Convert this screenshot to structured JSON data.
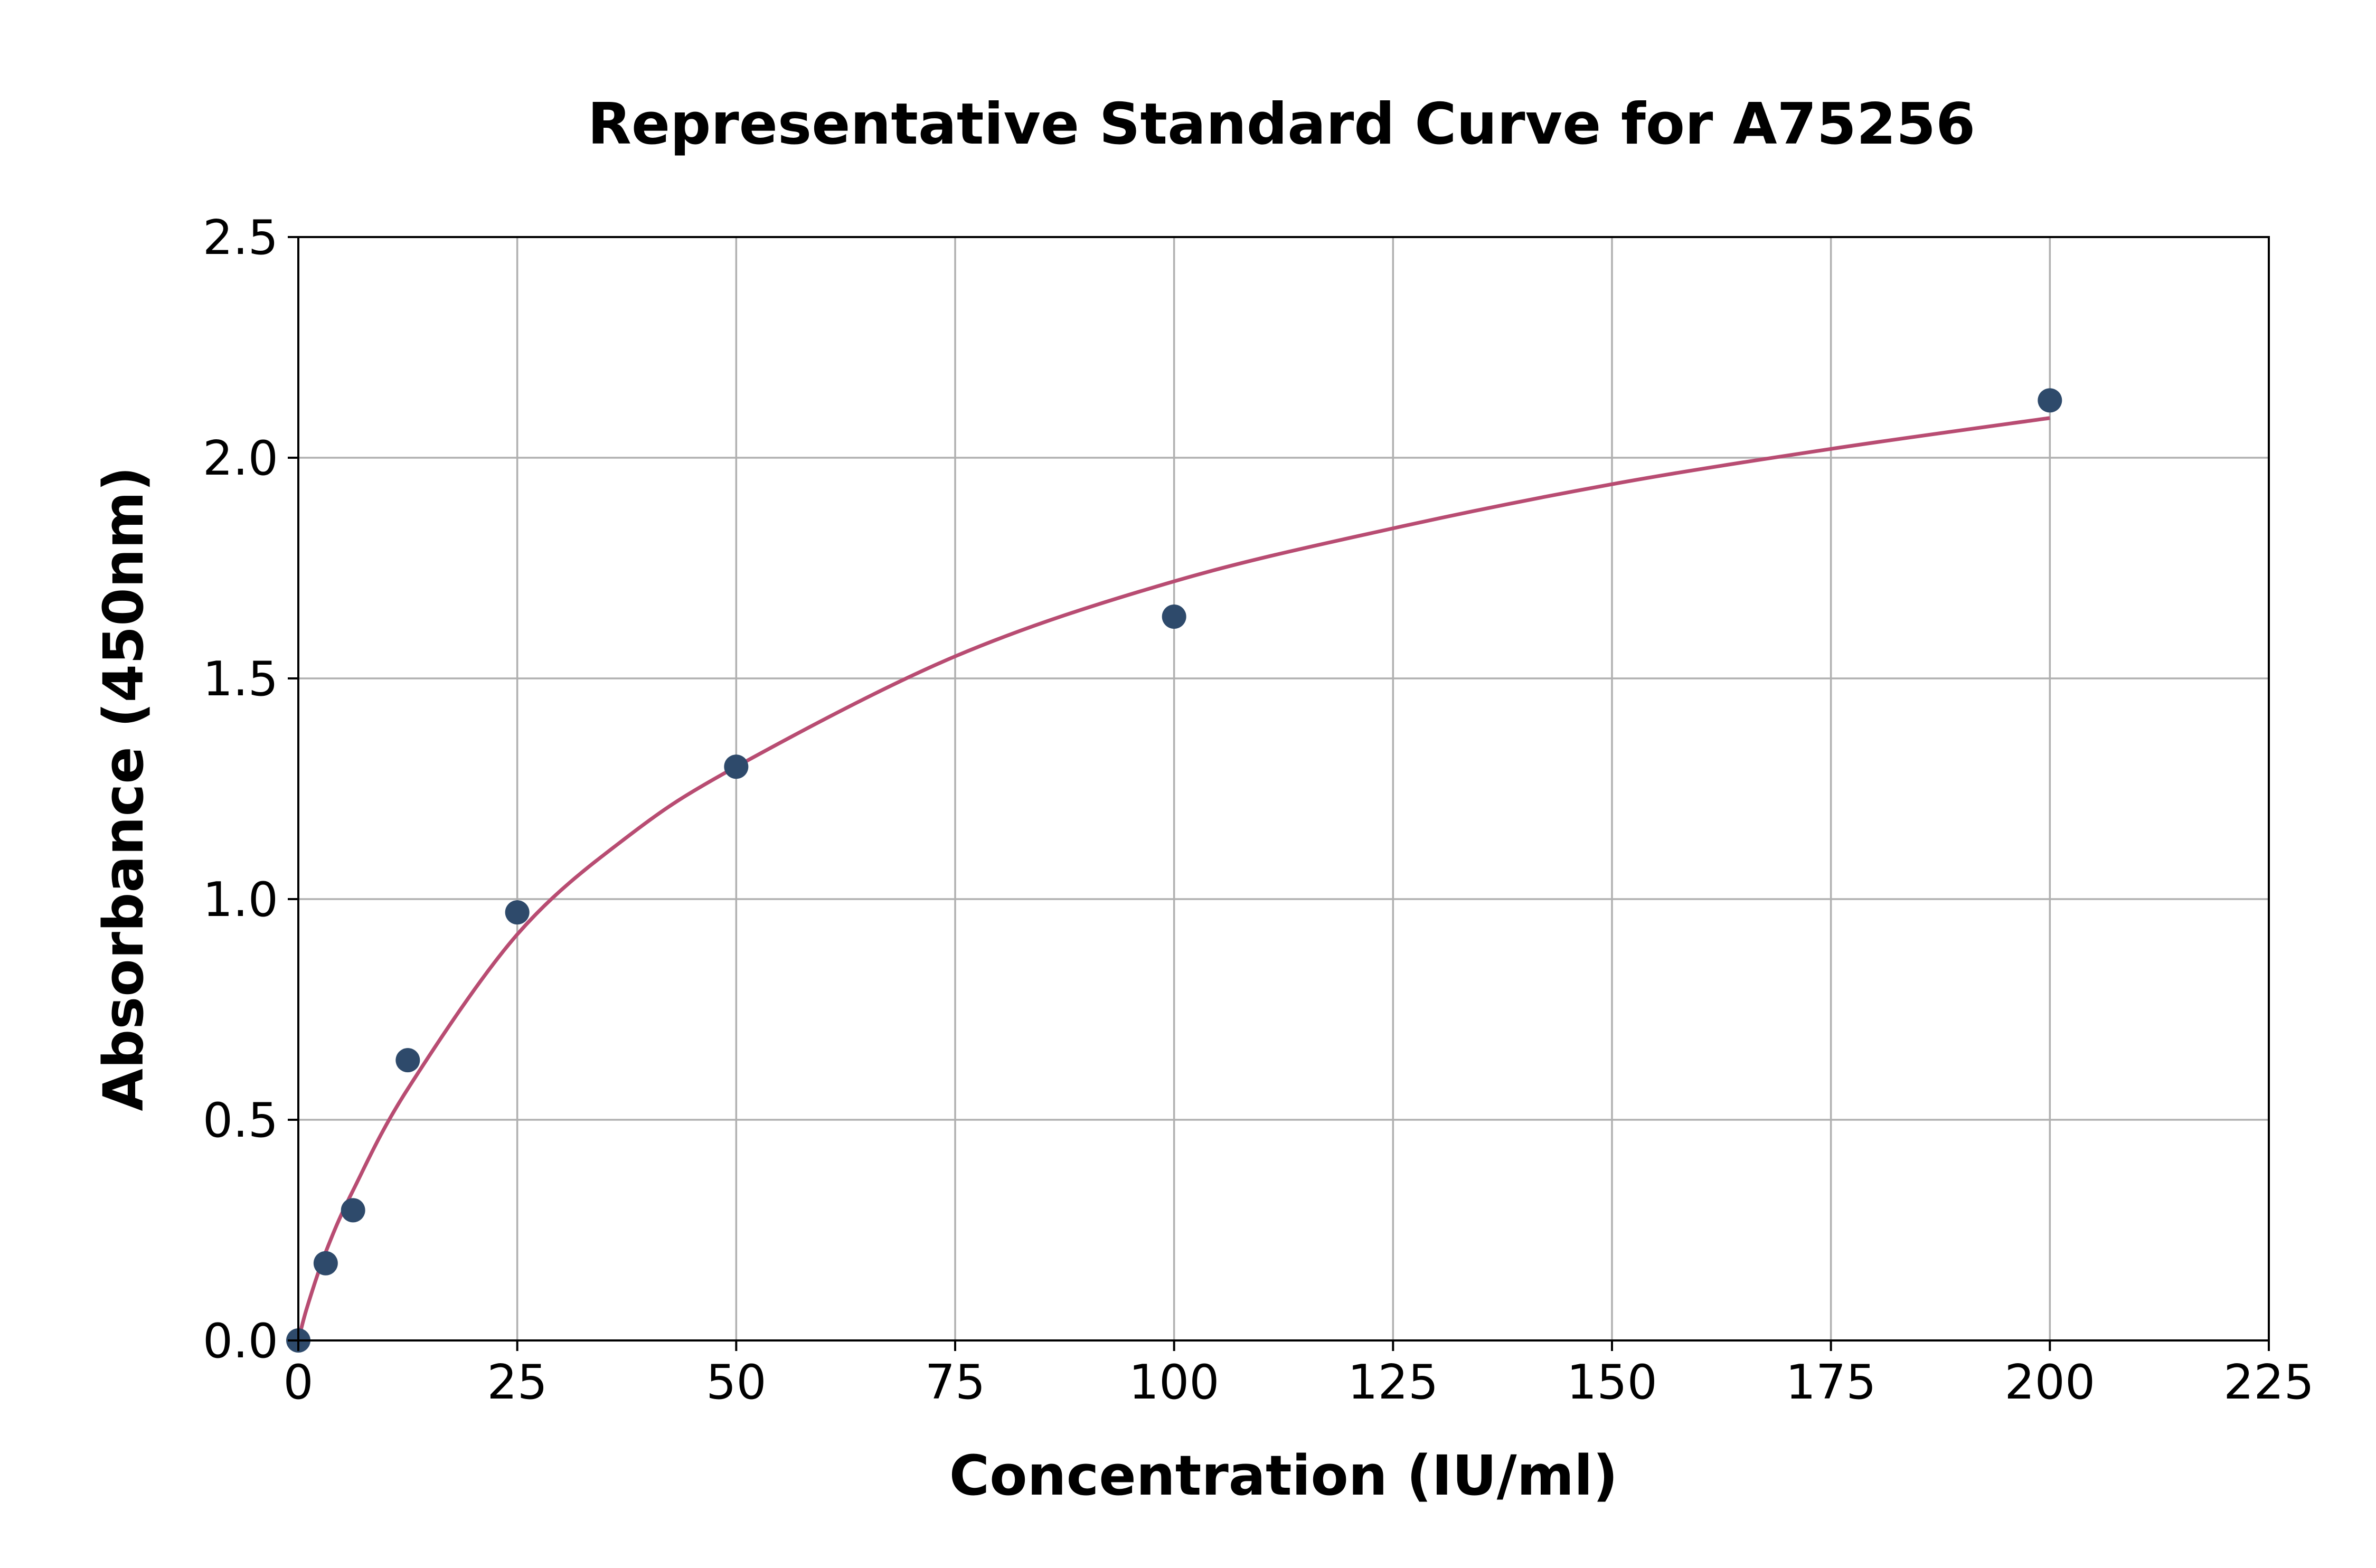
{
  "chart_data": {
    "type": "scatter",
    "title": "Representative Standard Curve for A75256",
    "xlabel": "Concentration (IU/ml)",
    "ylabel": "Absorbance (450nm)",
    "xlim": [
      0,
      225
    ],
    "ylim": [
      0,
      2.5
    ],
    "x_ticks": [
      "0",
      "25",
      "50",
      "75",
      "100",
      "125",
      "150",
      "175",
      "200",
      "225"
    ],
    "y_ticks": [
      "0.0",
      "0.5",
      "1.0",
      "1.5",
      "2.0",
      "2.5"
    ],
    "grid": true,
    "legend": "none",
    "series": [
      {
        "kind": "points",
        "color": "#2e4a6b",
        "x": [
          0,
          3.125,
          6.25,
          12.5,
          25,
          50,
          100,
          200
        ],
        "y": [
          0.0,
          0.175,
          0.295,
          0.635,
          0.97,
          1.3,
          1.64,
          2.13
        ]
      },
      {
        "kind": "fitted-curve",
        "color": "#b84c72",
        "x": [
          0,
          1,
          3.125,
          6.25,
          12.5,
          25,
          37.5,
          50,
          75,
          100,
          125,
          150,
          175,
          200
        ],
        "y": [
          0.0,
          0.075,
          0.2,
          0.34,
          0.57,
          0.92,
          1.14,
          1.3,
          1.55,
          1.72,
          1.84,
          1.94,
          2.02,
          2.09
        ]
      }
    ]
  }
}
